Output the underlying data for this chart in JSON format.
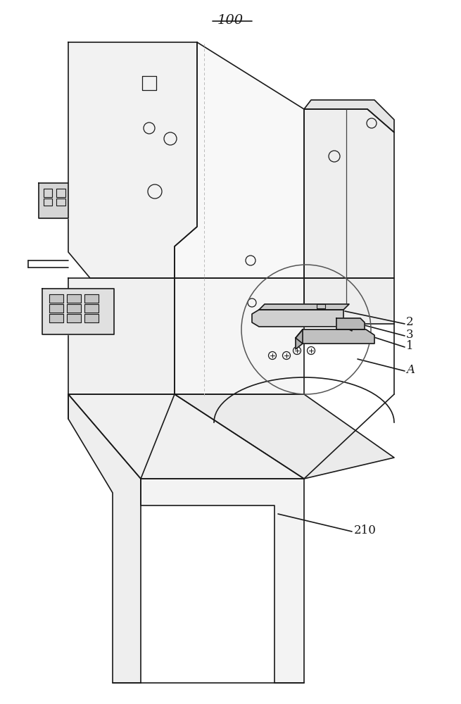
{
  "title": "100",
  "label_2": "2",
  "label_3": "3",
  "label_1": "1",
  "label_A": "A",
  "label_210": "210",
  "bg_color": "#ffffff",
  "line_color": "#1a1a1a",
  "line_width": 1.2,
  "fig_width": 6.55,
  "fig_height": 10.0,
  "dpi": 100
}
